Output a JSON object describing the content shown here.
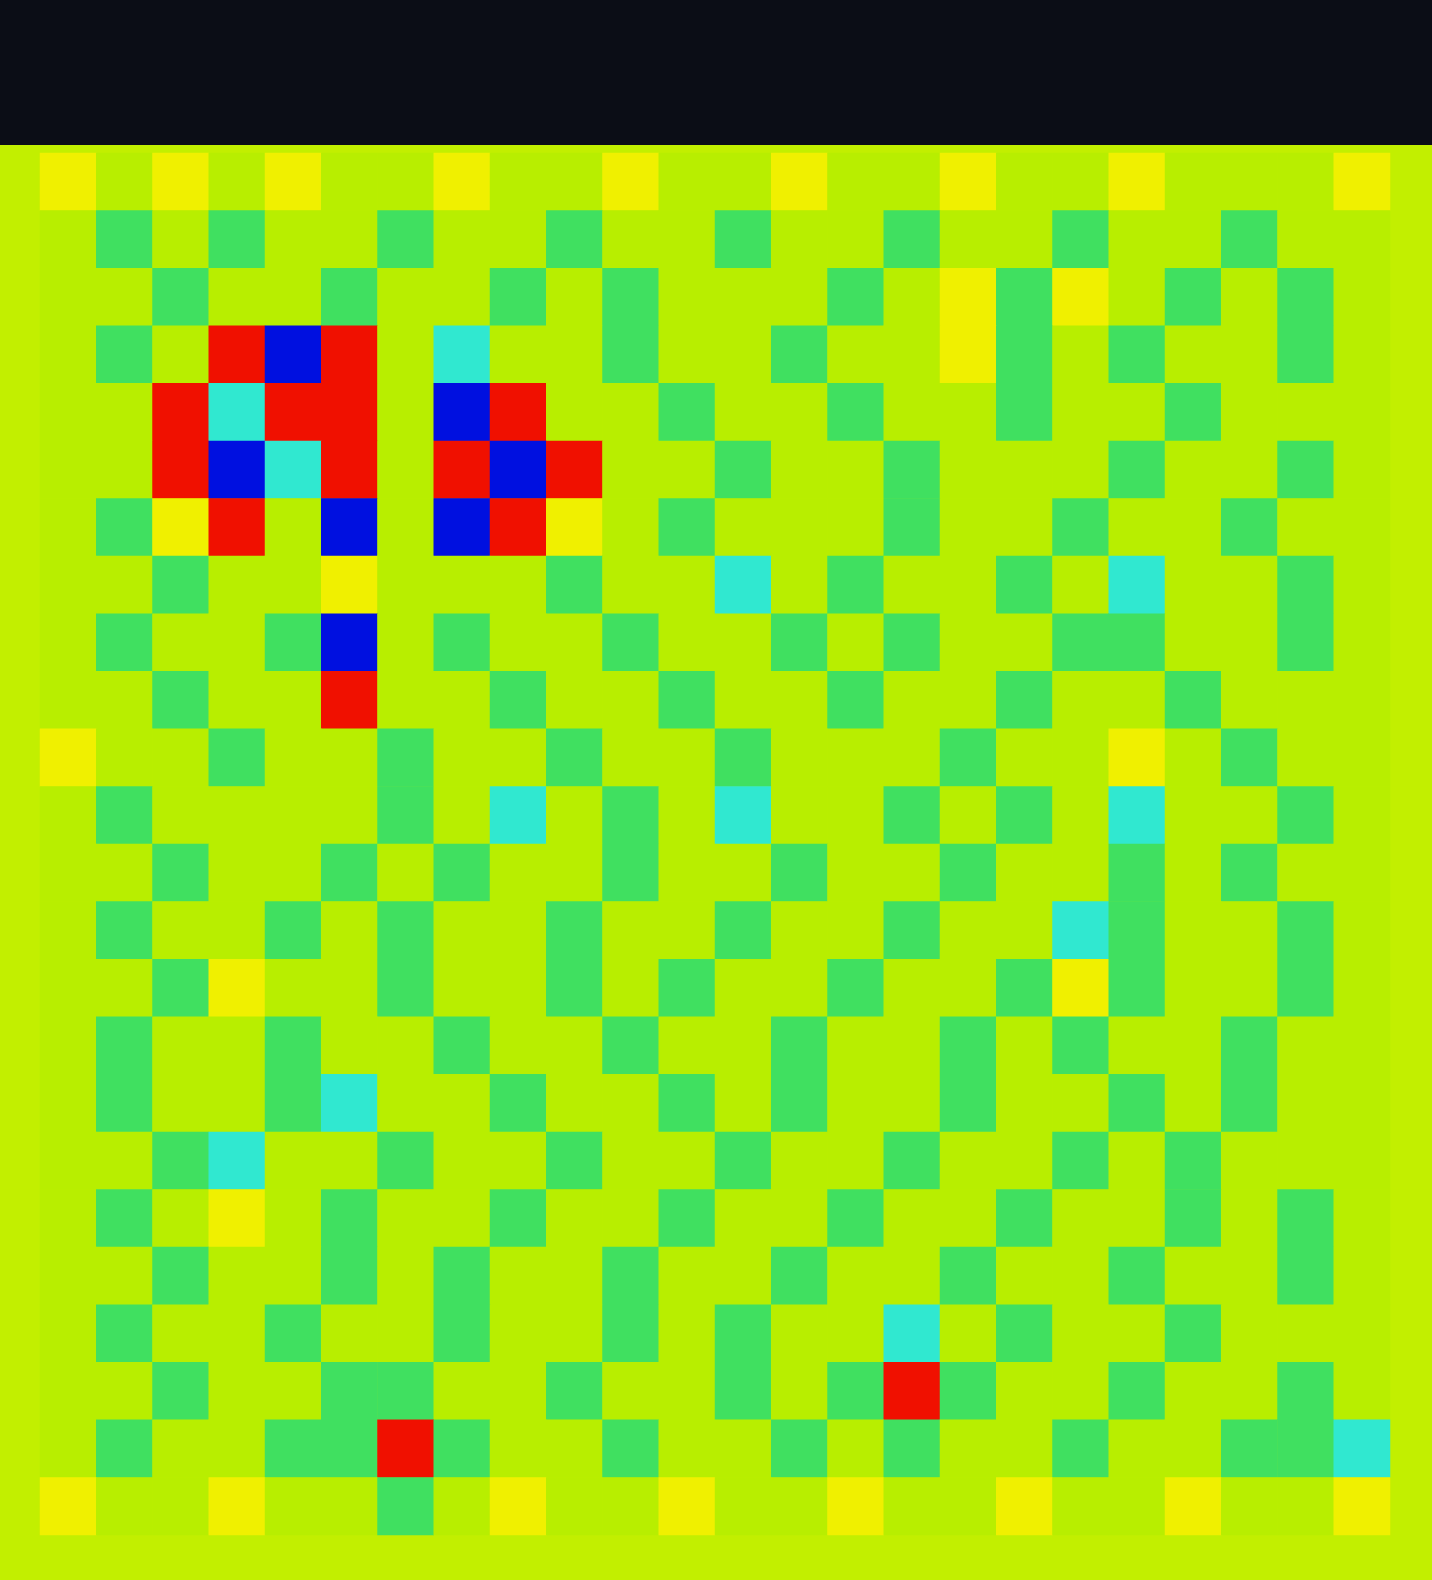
{
  "chart_data": {
    "type": "heatmap",
    "tick_labels": false,
    "grid": false,
    "value_range": [
      0,
      5
    ],
    "cells": [
      [
        4,
        3,
        4,
        3,
        4,
        3,
        3,
        4,
        3,
        3,
        4,
        3,
        3,
        4,
        3,
        3,
        4,
        3,
        3,
        4,
        3,
        3,
        3,
        4
      ],
      [
        3,
        2,
        3,
        2,
        3,
        3,
        2,
        3,
        3,
        2,
        3,
        3,
        2,
        3,
        3,
        2,
        3,
        3,
        2,
        3,
        3,
        2,
        3,
        3
      ],
      [
        3,
        3,
        2,
        3,
        3,
        2,
        3,
        3,
        2,
        3,
        2,
        3,
        3,
        3,
        2,
        3,
        4,
        2,
        4,
        3,
        2,
        3,
        2,
        3
      ],
      [
        3,
        2,
        3,
        5,
        0,
        5,
        3,
        1,
        3,
        3,
        2,
        3,
        3,
        2,
        3,
        3,
        4,
        2,
        3,
        2,
        3,
        3,
        2,
        3
      ],
      [
        3,
        3,
        5,
        1,
        5,
        5,
        3,
        0,
        5,
        3,
        3,
        2,
        3,
        3,
        2,
        3,
        3,
        2,
        3,
        3,
        2,
        3,
        3,
        3
      ],
      [
        3,
        3,
        5,
        0,
        1,
        5,
        3,
        5,
        0,
        5,
        3,
        3,
        2,
        3,
        3,
        2,
        3,
        3,
        3,
        2,
        3,
        3,
        2,
        3
      ],
      [
        3,
        2,
        4,
        5,
        3,
        0,
        3,
        0,
        5,
        4,
        3,
        2,
        3,
        3,
        3,
        2,
        3,
        3,
        2,
        3,
        3,
        2,
        3,
        3
      ],
      [
        3,
        3,
        2,
        3,
        3,
        4,
        3,
        3,
        3,
        2,
        3,
        3,
        1,
        3,
        2,
        3,
        3,
        2,
        3,
        1,
        3,
        3,
        2,
        3
      ],
      [
        3,
        2,
        3,
        3,
        2,
        0,
        3,
        2,
        3,
        3,
        2,
        3,
        3,
        2,
        3,
        2,
        3,
        3,
        2,
        2,
        3,
        3,
        2,
        3
      ],
      [
        3,
        3,
        2,
        3,
        3,
        5,
        3,
        3,
        2,
        3,
        3,
        2,
        3,
        3,
        2,
        3,
        3,
        2,
        3,
        3,
        2,
        3,
        3,
        3
      ],
      [
        4,
        3,
        3,
        2,
        3,
        3,
        2,
        3,
        3,
        2,
        3,
        3,
        2,
        3,
        3,
        3,
        2,
        3,
        3,
        4,
        3,
        2,
        3,
        3
      ],
      [
        3,
        2,
        3,
        3,
        3,
        3,
        2,
        3,
        1,
        3,
        2,
        3,
        1,
        3,
        3,
        2,
        3,
        2,
        3,
        1,
        3,
        3,
        2,
        3
      ],
      [
        3,
        3,
        2,
        3,
        3,
        2,
        3,
        2,
        3,
        3,
        2,
        3,
        3,
        2,
        3,
        3,
        2,
        3,
        3,
        2,
        3,
        2,
        3,
        3
      ],
      [
        3,
        2,
        3,
        3,
        2,
        3,
        2,
        3,
        3,
        2,
        3,
        3,
        2,
        3,
        3,
        2,
        3,
        3,
        1,
        2,
        3,
        3,
        2,
        3
      ],
      [
        3,
        3,
        2,
        4,
        3,
        3,
        2,
        3,
        3,
        2,
        3,
        2,
        3,
        3,
        2,
        3,
        3,
        2,
        4,
        2,
        3,
        3,
        2,
        3
      ],
      [
        3,
        2,
        3,
        3,
        2,
        3,
        3,
        2,
        3,
        3,
        2,
        3,
        3,
        2,
        3,
        3,
        2,
        3,
        2,
        3,
        3,
        2,
        3,
        3
      ],
      [
        3,
        2,
        3,
        3,
        2,
        1,
        3,
        3,
        2,
        3,
        3,
        2,
        3,
        2,
        3,
        3,
        2,
        3,
        3,
        2,
        3,
        2,
        3,
        3
      ],
      [
        3,
        3,
        2,
        1,
        3,
        3,
        2,
        3,
        3,
        2,
        3,
        3,
        2,
        3,
        3,
        2,
        3,
        3,
        2,
        3,
        2,
        3,
        3,
        3
      ],
      [
        3,
        2,
        3,
        4,
        3,
        2,
        3,
        3,
        2,
        3,
        3,
        2,
        3,
        3,
        2,
        3,
        3,
        2,
        3,
        3,
        2,
        3,
        2,
        3
      ],
      [
        3,
        3,
        2,
        3,
        3,
        2,
        3,
        2,
        3,
        3,
        2,
        3,
        3,
        2,
        3,
        3,
        2,
        3,
        3,
        2,
        3,
        3,
        2,
        3
      ],
      [
        3,
        2,
        3,
        3,
        2,
        3,
        3,
        2,
        3,
        3,
        2,
        3,
        2,
        3,
        3,
        1,
        3,
        2,
        3,
        3,
        2,
        3,
        3,
        3
      ],
      [
        3,
        3,
        2,
        3,
        3,
        2,
        2,
        3,
        3,
        2,
        3,
        3,
        2,
        3,
        2,
        5,
        2,
        3,
        3,
        2,
        3,
        3,
        2,
        3
      ],
      [
        3,
        2,
        3,
        3,
        2,
        2,
        5,
        2,
        3,
        3,
        2,
        3,
        3,
        2,
        3,
        2,
        3,
        3,
        2,
        3,
        3,
        2,
        2,
        1
      ],
      [
        4,
        3,
        3,
        4,
        3,
        3,
        2,
        3,
        4,
        3,
        3,
        4,
        3,
        3,
        4,
        3,
        3,
        4,
        3,
        3,
        4,
        3,
        3,
        4
      ]
    ]
  }
}
